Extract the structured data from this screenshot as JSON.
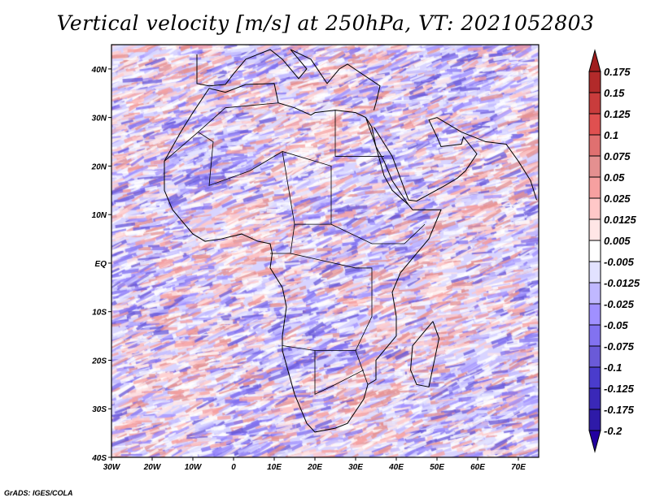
{
  "title": "Vertical velocity [m/s] at 250hPa, VT: 2021052803",
  "credit": "GrADS: IGES/COLA",
  "map": {
    "lon_range": [
      -30,
      75
    ],
    "lat_range": [
      -40,
      45
    ],
    "lat_ticks": [
      {
        "v": 40,
        "label": "40N"
      },
      {
        "v": 30,
        "label": "30N"
      },
      {
        "v": 20,
        "label": "20N"
      },
      {
        "v": 10,
        "label": "10N"
      },
      {
        "v": 0,
        "label": "EQ"
      },
      {
        "v": -10,
        "label": "10S"
      },
      {
        "v": -20,
        "label": "20S"
      },
      {
        "v": -30,
        "label": "30S"
      },
      {
        "v": -40,
        "label": "40S"
      }
    ],
    "lon_ticks": [
      {
        "v": -30,
        "label": "30W"
      },
      {
        "v": -20,
        "label": "20W"
      },
      {
        "v": -10,
        "label": "10W"
      },
      {
        "v": 0,
        "label": "0"
      },
      {
        "v": 10,
        "label": "10E"
      },
      {
        "v": 20,
        "label": "20E"
      },
      {
        "v": 30,
        "label": "30E"
      },
      {
        "v": 40,
        "label": "40E"
      },
      {
        "v": 50,
        "label": "50E"
      },
      {
        "v": 60,
        "label": "60E"
      },
      {
        "v": 70,
        "label": "70E"
      }
    ]
  },
  "colorbar": {
    "labels": [
      "0.175",
      "0.15",
      "0.125",
      "0.1",
      "0.075",
      "0.05",
      "0.025",
      "0.0125",
      "0.005",
      "-0.005",
      "-0.0125",
      "-0.025",
      "-0.05",
      "-0.075",
      "-0.1",
      "-0.125",
      "-0.175",
      "-0.2"
    ],
    "top_tip_color": "#a01e1e",
    "bottom_tip_color": "#2200a0",
    "colors": [
      "#b22a2a",
      "#c93c3c",
      "#e05050",
      "#e07070",
      "#e49090",
      "#f6a0a0",
      "#ffc8c8",
      "#ffe6e6",
      "#ffffff",
      "#e2e2ff",
      "#c0b8ff",
      "#a090ff",
      "#8272f0",
      "#6a5ad8",
      "#4a3ccc",
      "#3a28b8",
      "#2e1aa8"
    ]
  }
}
